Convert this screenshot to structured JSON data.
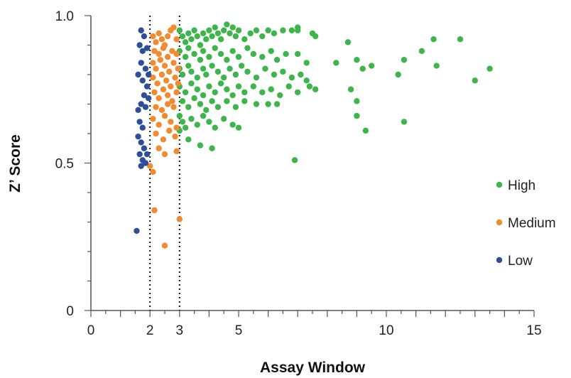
{
  "chart_data": {
    "type": "scatter",
    "title": "",
    "xlabel": "Assay Window",
    "ylabel": "Z’ Score",
    "xlim": [
      0,
      15
    ],
    "ylim": [
      0,
      1.0
    ],
    "x_ticks": [
      0,
      2,
      3,
      5,
      10,
      15
    ],
    "x_tick_labels": [
      "0",
      "2",
      "3",
      "5",
      "10",
      "15"
    ],
    "y_ticks": [
      0,
      0.5,
      1.0
    ],
    "y_tick_labels": [
      "0",
      "0.5",
      "1.0"
    ],
    "x_minor_step": 0.5,
    "y_minor_step": 0.1,
    "reference_lines": [
      2,
      3
    ],
    "grid": false,
    "legend_position": "right",
    "series": [
      {
        "name": "High",
        "color": "#3cb54a",
        "points": [
          [
            3.0,
            0.95
          ],
          [
            3.1,
            0.93
          ],
          [
            3.2,
            0.91
          ],
          [
            3.3,
            0.94
          ],
          [
            3.4,
            0.92
          ],
          [
            3.5,
            0.95
          ],
          [
            3.6,
            0.93
          ],
          [
            3.7,
            0.9
          ],
          [
            3.8,
            0.94
          ],
          [
            3.9,
            0.92
          ],
          [
            4.0,
            0.95
          ],
          [
            4.1,
            0.93
          ],
          [
            4.2,
            0.96
          ],
          [
            4.3,
            0.94
          ],
          [
            4.4,
            0.92
          ],
          [
            4.5,
            0.95
          ],
          [
            4.6,
            0.97
          ],
          [
            4.7,
            0.94
          ],
          [
            4.8,
            0.96
          ],
          [
            4.9,
            0.93
          ],
          [
            5.0,
            0.95
          ],
          [
            5.2,
            0.92
          ],
          [
            5.4,
            0.94
          ],
          [
            5.6,
            0.95
          ],
          [
            5.8,
            0.93
          ],
          [
            6.0,
            0.95
          ],
          [
            6.2,
            0.94
          ],
          [
            6.5,
            0.95
          ],
          [
            6.8,
            0.95
          ],
          [
            7.0,
            0.96
          ],
          [
            7.0,
            0.95
          ],
          [
            7.5,
            0.94
          ],
          [
            7.6,
            0.93
          ],
          [
            3.0,
            0.88
          ],
          [
            3.2,
            0.86
          ],
          [
            3.3,
            0.89
          ],
          [
            3.5,
            0.87
          ],
          [
            3.7,
            0.85
          ],
          [
            3.8,
            0.88
          ],
          [
            4.0,
            0.86
          ],
          [
            4.2,
            0.89
          ],
          [
            4.4,
            0.87
          ],
          [
            4.6,
            0.85
          ],
          [
            4.8,
            0.88
          ],
          [
            5.0,
            0.86
          ],
          [
            5.3,
            0.89
          ],
          [
            5.5,
            0.87
          ],
          [
            5.8,
            0.86
          ],
          [
            6.1,
            0.88
          ],
          [
            6.3,
            0.85
          ],
          [
            6.6,
            0.87
          ],
          [
            7.0,
            0.87
          ],
          [
            7.3,
            0.84
          ],
          [
            3.0,
            0.82
          ],
          [
            3.1,
            0.8
          ],
          [
            3.3,
            0.83
          ],
          [
            3.4,
            0.81
          ],
          [
            3.6,
            0.79
          ],
          [
            3.8,
            0.82
          ],
          [
            3.9,
            0.8
          ],
          [
            4.1,
            0.83
          ],
          [
            4.3,
            0.81
          ],
          [
            4.5,
            0.79
          ],
          [
            4.7,
            0.82
          ],
          [
            4.9,
            0.8
          ],
          [
            5.1,
            0.83
          ],
          [
            5.3,
            0.81
          ],
          [
            5.6,
            0.79
          ],
          [
            5.9,
            0.82
          ],
          [
            6.2,
            0.8
          ],
          [
            6.5,
            0.81
          ],
          [
            6.8,
            0.79
          ],
          [
            7.1,
            0.8
          ],
          [
            7.3,
            0.78
          ],
          [
            3.0,
            0.76
          ],
          [
            3.2,
            0.74
          ],
          [
            3.4,
            0.77
          ],
          [
            3.6,
            0.75
          ],
          [
            3.8,
            0.73
          ],
          [
            4.0,
            0.76
          ],
          [
            4.2,
            0.74
          ],
          [
            4.4,
            0.77
          ],
          [
            4.6,
            0.75
          ],
          [
            4.8,
            0.73
          ],
          [
            5.0,
            0.76
          ],
          [
            5.2,
            0.74
          ],
          [
            5.5,
            0.76
          ],
          [
            5.8,
            0.74
          ],
          [
            6.1,
            0.75
          ],
          [
            6.4,
            0.73
          ],
          [
            6.7,
            0.76
          ],
          [
            7.0,
            0.74
          ],
          [
            7.4,
            0.76
          ],
          [
            7.6,
            0.75
          ],
          [
            3.1,
            0.71
          ],
          [
            3.3,
            0.69
          ],
          [
            3.5,
            0.72
          ],
          [
            3.7,
            0.7
          ],
          [
            3.9,
            0.68
          ],
          [
            4.1,
            0.71
          ],
          [
            4.3,
            0.69
          ],
          [
            4.6,
            0.71
          ],
          [
            4.9,
            0.69
          ],
          [
            5.2,
            0.71
          ],
          [
            5.6,
            0.7
          ],
          [
            6.0,
            0.7
          ],
          [
            6.3,
            0.7
          ],
          [
            3.0,
            0.66
          ],
          [
            3.1,
            0.64
          ],
          [
            3.2,
            0.62
          ],
          [
            3.4,
            0.65
          ],
          [
            3.6,
            0.63
          ],
          [
            3.8,
            0.66
          ],
          [
            4.0,
            0.64
          ],
          [
            4.2,
            0.62
          ],
          [
            4.5,
            0.65
          ],
          [
            4.8,
            0.63
          ],
          [
            3.0,
            0.61
          ],
          [
            3.3,
            0.58
          ],
          [
            3.7,
            0.56
          ],
          [
            4.1,
            0.55
          ],
          [
            5.0,
            0.62
          ],
          [
            6.9,
            0.51
          ],
          [
            8.3,
            0.84
          ],
          [
            8.7,
            0.91
          ],
          [
            9.0,
            0.85
          ],
          [
            9.2,
            0.82
          ],
          [
            9.5,
            0.83
          ],
          [
            10.4,
            0.8
          ],
          [
            10.6,
            0.85
          ],
          [
            11.2,
            0.88
          ],
          [
            11.6,
            0.92
          ],
          [
            11.7,
            0.83
          ],
          [
            12.5,
            0.92
          ],
          [
            13.0,
            0.78
          ],
          [
            13.5,
            0.82
          ],
          [
            8.8,
            0.75
          ],
          [
            9.0,
            0.71
          ],
          [
            9.0,
            0.66
          ],
          [
            9.3,
            0.61
          ],
          [
            10.6,
            0.64
          ]
        ]
      },
      {
        "name": "Medium",
        "color": "#f28a30",
        "points": [
          [
            2.1,
            0.93
          ],
          [
            2.2,
            0.91
          ],
          [
            2.3,
            0.94
          ],
          [
            2.4,
            0.92
          ],
          [
            2.5,
            0.9
          ],
          [
            2.6,
            0.93
          ],
          [
            2.7,
            0.95
          ],
          [
            2.8,
            0.96
          ],
          [
            2.9,
            0.92
          ],
          [
            2.15,
            0.88
          ],
          [
            2.3,
            0.87
          ],
          [
            2.45,
            0.89
          ],
          [
            2.6,
            0.86
          ],
          [
            2.75,
            0.88
          ],
          [
            2.9,
            0.87
          ],
          [
            2.1,
            0.84
          ],
          [
            2.2,
            0.82
          ],
          [
            2.35,
            0.85
          ],
          [
            2.5,
            0.83
          ],
          [
            2.65,
            0.81
          ],
          [
            2.8,
            0.84
          ],
          [
            2.95,
            0.82
          ],
          [
            2.1,
            0.79
          ],
          [
            2.25,
            0.77
          ],
          [
            2.4,
            0.8
          ],
          [
            2.55,
            0.78
          ],
          [
            2.7,
            0.76
          ],
          [
            2.85,
            0.79
          ],
          [
            2.95,
            0.77
          ],
          [
            2.15,
            0.74
          ],
          [
            2.3,
            0.72
          ],
          [
            2.45,
            0.75
          ],
          [
            2.6,
            0.73
          ],
          [
            2.75,
            0.71
          ],
          [
            2.9,
            0.74
          ],
          [
            2.2,
            0.69
          ],
          [
            2.4,
            0.68
          ],
          [
            2.6,
            0.7
          ],
          [
            2.8,
            0.69
          ],
          [
            2.1,
            0.65
          ],
          [
            2.3,
            0.63
          ],
          [
            2.5,
            0.66
          ],
          [
            2.7,
            0.64
          ],
          [
            2.9,
            0.62
          ],
          [
            2.2,
            0.6
          ],
          [
            2.45,
            0.58
          ],
          [
            2.65,
            0.61
          ],
          [
            2.85,
            0.59
          ],
          [
            2.3,
            0.55
          ],
          [
            2.5,
            0.53
          ],
          [
            2.9,
            0.54
          ],
          [
            2.0,
            0.49
          ],
          [
            2.1,
            0.47
          ],
          [
            2.15,
            0.34
          ],
          [
            2.5,
            0.22
          ],
          [
            3.0,
            0.31
          ]
        ]
      },
      {
        "name": "Low",
        "color": "#2e4e9a",
        "points": [
          [
            1.7,
            0.95
          ],
          [
            1.8,
            0.93
          ],
          [
            1.65,
            0.9
          ],
          [
            1.75,
            0.88
          ],
          [
            1.9,
            0.89
          ],
          [
            1.7,
            0.84
          ],
          [
            1.85,
            0.82
          ],
          [
            1.95,
            0.8
          ],
          [
            1.6,
            0.8
          ],
          [
            1.75,
            0.78
          ],
          [
            1.9,
            0.76
          ],
          [
            1.8,
            0.73
          ],
          [
            1.95,
            0.72
          ],
          [
            1.7,
            0.7
          ],
          [
            1.85,
            0.69
          ],
          [
            1.6,
            0.68
          ],
          [
            1.65,
            0.64
          ],
          [
            1.75,
            0.62
          ],
          [
            1.6,
            0.59
          ],
          [
            1.7,
            0.57
          ],
          [
            1.8,
            0.55
          ],
          [
            1.9,
            0.53
          ],
          [
            1.65,
            0.53
          ],
          [
            1.75,
            0.51
          ],
          [
            1.85,
            0.5
          ],
          [
            1.7,
            0.49
          ],
          [
            1.55,
            0.27
          ]
        ]
      }
    ]
  }
}
